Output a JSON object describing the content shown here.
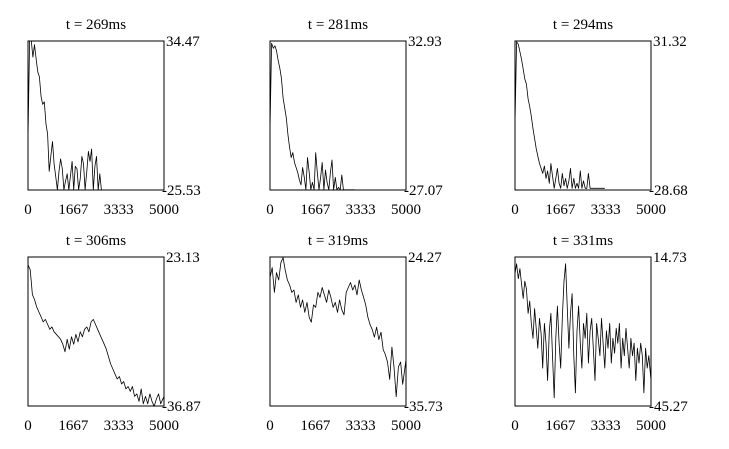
{
  "chart_data": [
    {
      "type": "line",
      "title": "t = 269ms",
      "x_ticks": [
        "0",
        "1667",
        "3333",
        "5000"
      ],
      "xlim": [
        0,
        5000
      ],
      "y_top_label": "34.47",
      "y_bottom_label": "-25.53",
      "ylim": [
        -25.53,
        34.47
      ],
      "x": [
        0,
        60,
        120,
        180,
        240,
        300,
        360,
        420,
        480,
        540,
        600,
        660,
        720,
        780,
        840,
        900,
        960,
        1020,
        1080,
        1140,
        1200,
        1260,
        1320,
        1380,
        1440,
        1500,
        1560,
        1620,
        1680,
        1740,
        1800,
        1860,
        1920,
        1980,
        2040,
        2100,
        2160,
        2220,
        2280,
        2340,
        2400,
        2460,
        2520,
        2580,
        2640,
        2700,
        2760,
        2820,
        2880,
        2940,
        3000,
        3060,
        3120,
        3180,
        3240,
        3300,
        3360,
        3420,
        3480,
        3540,
        3600,
        3660,
        3720,
        3780,
        3840,
        3900,
        3960,
        4020,
        4080,
        4140,
        4200,
        4260,
        4320,
        4380,
        4440,
        4500,
        4560,
        4620,
        4680,
        4740,
        4800,
        4860,
        4920,
        5000
      ],
      "y": [
        -5,
        34.5,
        34.5,
        28,
        33,
        27,
        22,
        20,
        12,
        9,
        10,
        1,
        -3,
        -18,
        -12,
        -6,
        -15,
        -20,
        -25.5,
        -18,
        -13,
        -17,
        -25.5,
        -22,
        -19,
        -25.5,
        -20,
        -14,
        -25.5,
        -16,
        -17,
        -25.5,
        -21,
        -12,
        -15,
        -25.5,
        -18,
        -10,
        -14,
        -9,
        -25.5,
        -16,
        -12,
        -25.5,
        -19,
        -25.5,
        -25.5,
        -25.5,
        -25.5,
        -25.5,
        -25.5,
        -25.5,
        -25.5,
        -25.5,
        -25.5,
        -25.5,
        -25.5,
        -25.5,
        -25.5,
        -25.5,
        -25.5,
        -25.5,
        -25.5,
        -25.5,
        -25.5,
        -25.5,
        -25.5,
        -25.5,
        -25.5,
        -25.5,
        -25.5,
        -25.5,
        -25.5,
        -25.5,
        -25.5,
        -25.5,
        -25.5,
        -25.5,
        -25.5,
        -25.5,
        -25.5,
        -25.5,
        -25.5,
        -25.5
      ]
    },
    {
      "type": "line",
      "title": "t = 281ms",
      "x_ticks": [
        "0",
        "1667",
        "3333",
        "5000"
      ],
      "xlim": [
        0,
        5000
      ],
      "y_top_label": "32.93",
      "y_bottom_label": "-27.07",
      "ylim": [
        -27.07,
        32.93
      ],
      "x": [
        0,
        60,
        120,
        180,
        240,
        300,
        360,
        420,
        480,
        540,
        600,
        660,
        720,
        780,
        840,
        900,
        960,
        1020,
        1080,
        1140,
        1200,
        1260,
        1320,
        1380,
        1440,
        1500,
        1560,
        1620,
        1680,
        1740,
        1800,
        1860,
        1920,
        1980,
        2040,
        2100,
        2160,
        2220,
        2280,
        2340,
        2400,
        2460,
        2520,
        2580,
        2640,
        2700,
        2760,
        2820,
        2880,
        2940,
        3000,
        3060,
        3120
      ],
      "y": [
        -3,
        32,
        30,
        31,
        29,
        25,
        22,
        18,
        10,
        6,
        2,
        -5,
        -10,
        -14,
        -12,
        -16,
        -18,
        -20,
        -23,
        -25,
        -18,
        -22,
        -27,
        -14,
        -20,
        -27,
        -24,
        -27,
        -12,
        -20,
        -27,
        -22,
        -16,
        -27,
        -19,
        -24,
        -27,
        -20,
        -15,
        -27,
        -22,
        -27,
        -26,
        -27,
        -21,
        -27,
        -27,
        -27,
        -27,
        -27,
        -27,
        -27,
        -27
      ]
    },
    {
      "type": "line",
      "title": "t = 294ms",
      "x_ticks": [
        "0",
        "1667",
        "3333",
        "5000"
      ],
      "xlim": [
        0,
        5000
      ],
      "y_top_label": "31.32",
      "y_bottom_label": "-28.68",
      "ylim": [
        -28.68,
        31.32
      ],
      "x": [
        0,
        60,
        120,
        180,
        240,
        300,
        360,
        420,
        480,
        540,
        600,
        660,
        720,
        780,
        840,
        900,
        960,
        1020,
        1080,
        1140,
        1200,
        1260,
        1320,
        1380,
        1440,
        1500,
        1560,
        1620,
        1680,
        1740,
        1800,
        1860,
        1920,
        1980,
        2040,
        2100,
        2160,
        2220,
        2280,
        2340,
        2400,
        2460,
        2520,
        2580,
        2640,
        2700,
        2760,
        2820,
        2880,
        2940,
        3000,
        3060,
        3120,
        3180,
        3240,
        3300
      ],
      "y": [
        -2,
        31,
        30,
        27,
        24,
        20,
        16,
        14,
        8,
        5,
        1,
        -4,
        -8,
        -12,
        -15,
        -18,
        -20,
        -22,
        -19,
        -24,
        -21,
        -26,
        -18,
        -23,
        -28,
        -24,
        -20,
        -26,
        -28,
        -22,
        -27,
        -24,
        -28,
        -25,
        -20,
        -28,
        -24,
        -28,
        -26,
        -28,
        -21,
        -28,
        -25,
        -28,
        -28,
        -22,
        -28,
        -28,
        -28,
        -28,
        -28,
        -28,
        -28,
        -28,
        -28,
        -28
      ]
    },
    {
      "type": "line",
      "title": "t = 306ms",
      "x_ticks": [
        "0",
        "1667",
        "3333",
        "5000"
      ],
      "xlim": [
        0,
        5000
      ],
      "y_top_label": "23.13",
      "y_bottom_label": "-36.87",
      "ylim": [
        -36.87,
        23.13
      ],
      "x": [
        0,
        80,
        160,
        240,
        320,
        400,
        480,
        560,
        640,
        720,
        800,
        880,
        960,
        1040,
        1120,
        1200,
        1280,
        1360,
        1440,
        1520,
        1600,
        1680,
        1760,
        1840,
        1920,
        2000,
        2080,
        2160,
        2240,
        2320,
        2400,
        2480,
        2560,
        2640,
        2720,
        2800,
        2880,
        2960,
        3040,
        3120,
        3200,
        3280,
        3360,
        3440,
        3520,
        3600,
        3680,
        3760,
        3840,
        3920,
        4000,
        4080,
        4160,
        4240,
        4320,
        4400,
        4480,
        4560,
        4640,
        4720,
        4800,
        4880,
        5000
      ],
      "y": [
        20,
        18,
        8,
        6,
        3,
        1,
        -1,
        -3,
        -2,
        -4,
        -6,
        -5,
        -7,
        -8,
        -9,
        -10,
        -12,
        -15,
        -10,
        -14,
        -9,
        -12,
        -8,
        -11,
        -7,
        -9,
        -6,
        -5,
        -7,
        -3,
        -2,
        -4,
        -6,
        -8,
        -10,
        -12,
        -14,
        -17,
        -20,
        -22,
        -24,
        -26,
        -25,
        -28,
        -27,
        -30,
        -29,
        -31,
        -29,
        -33,
        -32,
        -35,
        -30,
        -36,
        -33,
        -36,
        -32,
        -35,
        -37,
        -34,
        -32,
        -36,
        -33
      ]
    },
    {
      "type": "line",
      "title": "t = 319ms",
      "x_ticks": [
        "0",
        "1667",
        "3333",
        "5000"
      ],
      "xlim": [
        0,
        5000
      ],
      "y_top_label": "24.27",
      "y_bottom_label": "-35.73",
      "ylim": [
        -35.73,
        24.27
      ],
      "x": [
        0,
        80,
        160,
        240,
        320,
        400,
        480,
        560,
        640,
        720,
        800,
        880,
        960,
        1040,
        1120,
        1200,
        1280,
        1360,
        1440,
        1520,
        1600,
        1680,
        1760,
        1840,
        1920,
        2000,
        2080,
        2160,
        2240,
        2320,
        2400,
        2480,
        2560,
        2640,
        2720,
        2800,
        2880,
        2960,
        3040,
        3120,
        3200,
        3280,
        3360,
        3440,
        3520,
        3600,
        3680,
        3760,
        3840,
        3920,
        4000,
        4080,
        4160,
        4240,
        4320,
        4400,
        4480,
        4560,
        4640,
        4720,
        4800,
        4880,
        5000
      ],
      "y": [
        16,
        20,
        10,
        18,
        15,
        22,
        24,
        19,
        15,
        13,
        10,
        11,
        6,
        9,
        4,
        7,
        2,
        6,
        0,
        -2,
        5,
        4,
        10,
        8,
        12,
        9,
        6,
        11,
        8,
        4,
        6,
        2,
        7,
        3,
        1,
        10,
        12,
        14,
        11,
        13,
        9,
        15,
        11,
        8,
        5,
        0,
        -3,
        -5,
        -8,
        -4,
        -9,
        -6,
        -13,
        -15,
        -18,
        -25,
        -12,
        -20,
        -32,
        -20,
        -18,
        -27,
        -17
      ]
    },
    {
      "type": "line",
      "title": "t = 331ms",
      "x_ticks": [
        "0",
        "1667",
        "3333",
        "5000"
      ],
      "xlim": [
        0,
        5000
      ],
      "y_top_label": "14.73",
      "y_bottom_label": "-45.27",
      "ylim": [
        -45.27,
        14.73
      ],
      "x": [
        0,
        60,
        120,
        180,
        240,
        300,
        360,
        420,
        480,
        540,
        600,
        660,
        720,
        780,
        840,
        900,
        960,
        1020,
        1080,
        1140,
        1200,
        1260,
        1320,
        1380,
        1440,
        1500,
        1560,
        1620,
        1680,
        1740,
        1800,
        1860,
        1920,
        1980,
        2040,
        2100,
        2160,
        2220,
        2280,
        2340,
        2400,
        2460,
        2520,
        2580,
        2640,
        2700,
        2760,
        2820,
        2880,
        2940,
        3000,
        3060,
        3120,
        3180,
        3240,
        3300,
        3360,
        3420,
        3480,
        3540,
        3600,
        3660,
        3720,
        3780,
        3840,
        3900,
        3960,
        4020,
        4080,
        4140,
        4200,
        4260,
        4320,
        4380,
        4440,
        4500,
        4560,
        4620,
        4680,
        4740,
        4800,
        4860,
        4920,
        5000
      ],
      "y": [
        8,
        12,
        6,
        10,
        4,
        -2,
        5,
        2,
        -8,
        -3,
        -12,
        -18,
        -6,
        -14,
        -22,
        -10,
        -16,
        -30,
        -12,
        -20,
        -35,
        -15,
        -8,
        -25,
        -42,
        -18,
        -5,
        -20,
        -30,
        -10,
        5,
        12,
        -5,
        -22,
        -8,
        0,
        -25,
        -40,
        -15,
        -5,
        -20,
        -30,
        -12,
        -18,
        -8,
        -28,
        -15,
        -10,
        -22,
        -35,
        -12,
        -18,
        -25,
        -10,
        -20,
        -30,
        -15,
        -22,
        -12,
        -28,
        -18,
        -24,
        -14,
        -20,
        -12,
        -30,
        -18,
        -25,
        -14,
        -22,
        -30,
        -18,
        -25,
        -20,
        -35,
        -22,
        -28,
        -20,
        -25,
        -40,
        -22,
        -30,
        -25,
        -35
      ]
    }
  ]
}
